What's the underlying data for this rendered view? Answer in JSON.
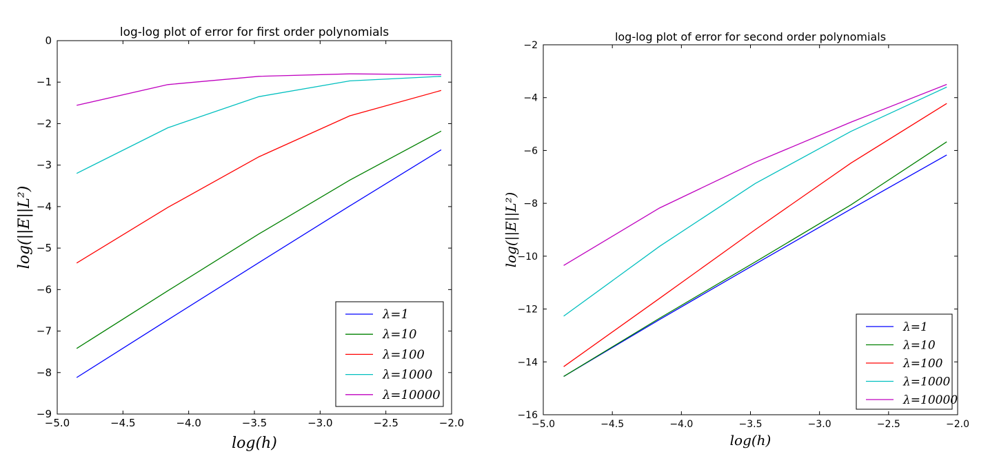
{
  "chart_data": [
    {
      "type": "line",
      "title": "log-log plot of error for first order polynomials",
      "xlabel": "log(h)",
      "ylabel": "log(||E||L²)",
      "xlim": [
        -5.0,
        -2.0
      ],
      "ylim": [
        -9,
        0
      ],
      "xticks": [
        -5.0,
        -4.5,
        -4.0,
        -3.5,
        -3.0,
        -2.5,
        -2.0
      ],
      "xtick_labels": [
        "−5.0",
        "−4.5",
        "−4.0",
        "−3.5",
        "−3.0",
        "−2.5",
        "−2.0"
      ],
      "yticks": [
        0,
        -1,
        -2,
        -3,
        -4,
        -5,
        -6,
        -7,
        -8,
        -9
      ],
      "ytick_labels": [
        "0",
        "−1",
        "−2",
        "−3",
        "−4",
        "−5",
        "−6",
        "−7",
        "−8",
        "−9"
      ],
      "grid": false,
      "legend": "lower-right",
      "x": [
        -4.852,
        -4.159,
        -3.466,
        -2.773,
        -2.079
      ],
      "series": [
        {
          "name": "λ=1",
          "color": "#0000ff",
          "values": [
            -8.12,
            -6.73,
            -5.35,
            -3.98,
            -2.63
          ]
        },
        {
          "name": "λ=10",
          "color": "#008000",
          "values": [
            -7.42,
            -6.03,
            -4.66,
            -3.36,
            -2.18
          ]
        },
        {
          "name": "λ=100",
          "color": "#ff0000",
          "values": [
            -5.36,
            -4.02,
            -2.8,
            -1.81,
            -1.2
          ]
        },
        {
          "name": "λ=1000",
          "color": "#00bfbf",
          "values": [
            -3.2,
            -2.1,
            -1.35,
            -0.97,
            -0.86
          ]
        },
        {
          "name": "λ=10000",
          "color": "#bf00bf",
          "values": [
            -1.56,
            -1.06,
            -0.86,
            -0.8,
            -0.82
          ]
        }
      ]
    },
    {
      "type": "line",
      "title": "log-log plot of error for second order polynomials",
      "xlabel": "log(h)",
      "ylabel": "log(||E||L²)",
      "xlim": [
        -5.0,
        -2.0
      ],
      "ylim": [
        -16,
        -2
      ],
      "xticks": [
        -5.0,
        -4.5,
        -4.0,
        -3.5,
        -3.0,
        -2.5,
        -2.0
      ],
      "xtick_labels": [
        "−5.0",
        "−4.5",
        "−4.0",
        "−3.5",
        "−3.0",
        "−2.5",
        "−2.0"
      ],
      "yticks": [
        -2,
        -4,
        -6,
        -8,
        -10,
        -12,
        -14,
        -16
      ],
      "ytick_labels": [
        "−2",
        "−4",
        "−6",
        "−8",
        "−10",
        "−12",
        "−14",
        "−16"
      ],
      "grid": false,
      "legend": "lower-right",
      "x": [
        -4.852,
        -4.159,
        -3.466,
        -2.773,
        -2.079
      ],
      "series": [
        {
          "name": "λ=1",
          "color": "#0000ff",
          "values": [
            -14.55,
            -12.4,
            -10.3,
            -8.22,
            -6.17
          ]
        },
        {
          "name": "λ=10",
          "color": "#008000",
          "values": [
            -14.55,
            -12.35,
            -10.22,
            -8.06,
            -5.67
          ]
        },
        {
          "name": "λ=100",
          "color": "#ff0000",
          "values": [
            -14.18,
            -11.6,
            -9.0,
            -6.48,
            -4.22
          ]
        },
        {
          "name": "λ=1000",
          "color": "#00bfbf",
          "values": [
            -12.27,
            -9.63,
            -7.25,
            -5.28,
            -3.6
          ]
        },
        {
          "name": "λ=10000",
          "color": "#bf00bf",
          "values": [
            -10.35,
            -8.18,
            -6.45,
            -4.93,
            -3.5
          ]
        }
      ]
    }
  ]
}
